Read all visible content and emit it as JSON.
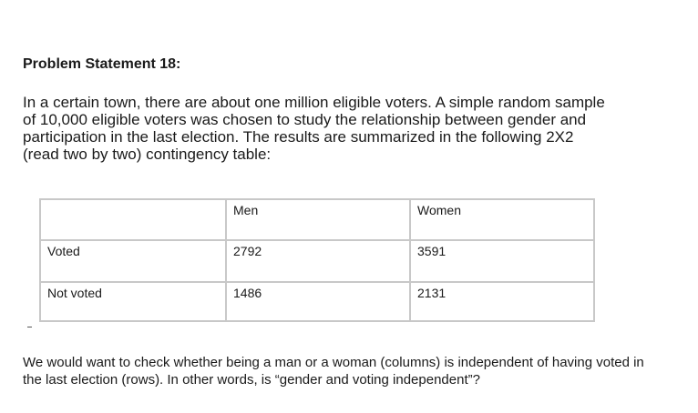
{
  "heading": "Problem Statement 18:",
  "intro": "In a certain town, there are about one million eligible voters. A simple random sample of 10,000 eligible voters was chosen to study the relationship between gender and participation in the last election. The results are summarized in the following 2X2 (read two by two) contingency table:",
  "table": {
    "headers": [
      "",
      "Men",
      "Women"
    ],
    "rows": [
      [
        "Voted",
        "2792",
        "3591"
      ],
      [
        "Not voted",
        "1486",
        "2131"
      ]
    ]
  },
  "closing": "We would want to check whether being a man or a woman (columns) is independent of having voted in the last election (rows). In other words, is “gender and voting independent”?"
}
